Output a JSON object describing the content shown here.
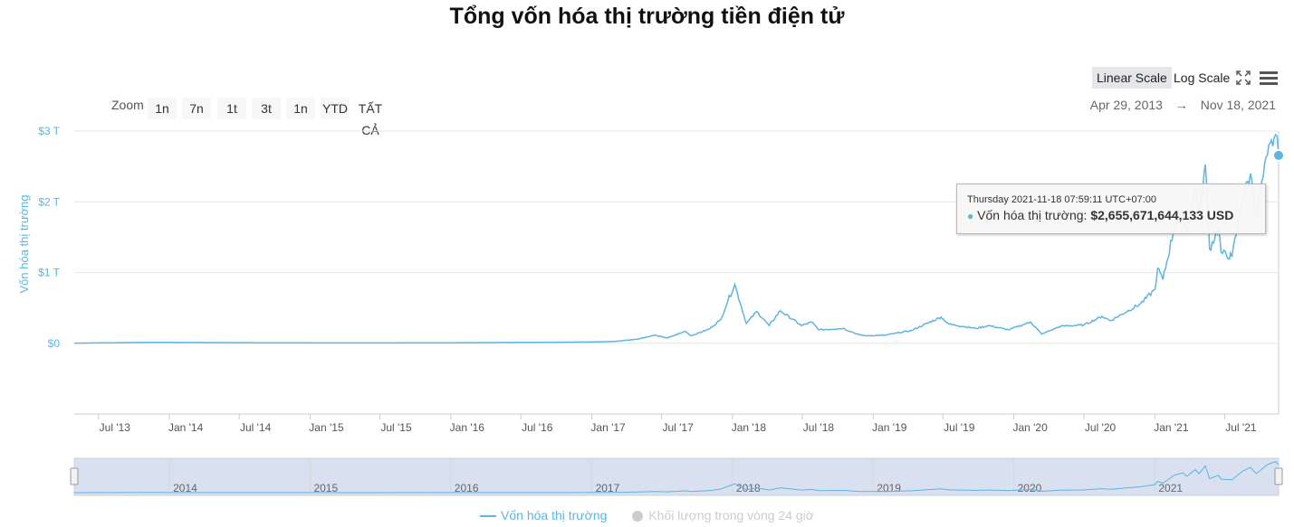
{
  "title": "Tổng vốn hóa thị trường tiền điện tử",
  "toolbar": {
    "linear_scale": "Linear Scale",
    "log_scale": "Log Scale",
    "zoom_label": "Zoom",
    "zoom_buttons": [
      "1n",
      "7n",
      "1t",
      "3t",
      "1n",
      "YTD",
      "TẤT CẢ"
    ],
    "range_from": "Apr 29, 2013",
    "range_arrow": "→",
    "range_to": "Nov 18, 2021"
  },
  "tooltip": {
    "time": "Thursday 2021-11-18 07:59:11 UTC+07:00",
    "series_label": "Vốn hóa thị trường:",
    "value": "$2,655,671,644,133 USD"
  },
  "legend": {
    "series1": "Vốn hóa thị trường",
    "series2": "Khối lượng trong vòng 24 giờ"
  },
  "colors": {
    "line": "#5fb4e2",
    "grid": "#e6e6e6",
    "navigator_fill": "#ccd6eb",
    "legend_disabled": "#cccccc"
  },
  "icons": [
    "fullscreen-icon",
    "menu-icon"
  ],
  "chart_data": {
    "type": "line",
    "title": "Tổng vốn hóa thị trường tiền điện tử",
    "ylabel": "Vốn hóa thị trường",
    "yunit": "USD",
    "ylim": [
      -1000000000000,
      3000000000000
    ],
    "y_ticks": [
      0,
      1000000000000,
      2000000000000,
      3000000000000
    ],
    "y_tick_labels": [
      "$0",
      "$1 T",
      "$2 T",
      "$3 T"
    ],
    "x_range": [
      "2013-04-29",
      "2021-11-18"
    ],
    "x_tick_labels": [
      "Jul '13",
      "Jan '14",
      "Jul '14",
      "Jan '15",
      "Jul '15",
      "Jan '16",
      "Jul '16",
      "Jan '17",
      "Jul '17",
      "Jan '18",
      "Jul '18",
      "Jan '19",
      "Jul '19",
      "Jan '20",
      "Jul '20",
      "Jan '21",
      "Jul '21"
    ],
    "x_tick_dates": [
      "2013-07-01",
      "2014-01-01",
      "2014-07-01",
      "2015-01-01",
      "2015-07-01",
      "2016-01-01",
      "2016-07-01",
      "2017-01-01",
      "2017-07-01",
      "2018-01-01",
      "2018-07-01",
      "2019-01-01",
      "2019-07-01",
      "2020-01-01",
      "2020-07-01",
      "2021-01-01",
      "2021-07-01"
    ],
    "navigator_years": [
      "2014",
      "2015",
      "2016",
      "2017",
      "2018",
      "2019",
      "2020",
      "2021"
    ],
    "grid": true,
    "legend_position": "bottom",
    "series": [
      {
        "name": "Vốn hóa thị trường",
        "points": [
          [
            "2013-04-29",
            1500000000.0
          ],
          [
            "2013-11-30",
            14000000000.0
          ],
          [
            "2014-01-01",
            12000000000.0
          ],
          [
            "2014-06-01",
            9000000000.0
          ],
          [
            "2015-01-01",
            5000000000.0
          ],
          [
            "2015-06-01",
            4000000000.0
          ],
          [
            "2016-01-01",
            7000000000.0
          ],
          [
            "2016-06-15",
            12000000000.0
          ],
          [
            "2017-01-01",
            18000000000.0
          ],
          [
            "2017-03-01",
            25000000000.0
          ],
          [
            "2017-05-01",
            60000000000.0
          ],
          [
            "2017-06-12",
            115000000000.0
          ],
          [
            "2017-07-16",
            75000000000.0
          ],
          [
            "2017-09-01",
            170000000000.0
          ],
          [
            "2017-09-15",
            105000000000.0
          ],
          [
            "2017-11-01",
            200000000000.0
          ],
          [
            "2017-12-01",
            330000000000.0
          ],
          [
            "2017-12-20",
            600000000000.0
          ],
          [
            "2018-01-07",
            830000000000.0
          ],
          [
            "2018-02-06",
            280000000000.0
          ],
          [
            "2018-03-05",
            450000000000.0
          ],
          [
            "2018-04-06",
            250000000000.0
          ],
          [
            "2018-05-05",
            460000000000.0
          ],
          [
            "2018-06-29",
            250000000000.0
          ],
          [
            "2018-07-25",
            300000000000.0
          ],
          [
            "2018-08-14",
            190000000000.0
          ],
          [
            "2018-10-15",
            210000000000.0
          ],
          [
            "2018-11-25",
            120000000000.0
          ],
          [
            "2018-12-15",
            105000000000.0
          ],
          [
            "2019-02-01",
            115000000000.0
          ],
          [
            "2019-04-10",
            180000000000.0
          ],
          [
            "2019-06-26",
            370000000000.0
          ],
          [
            "2019-07-17",
            270000000000.0
          ],
          [
            "2019-09-24",
            210000000000.0
          ],
          [
            "2019-10-28",
            250000000000.0
          ],
          [
            "2019-12-18",
            190000000000.0
          ],
          [
            "2020-02-14",
            300000000000.0
          ],
          [
            "2020-03-13",
            130000000000.0
          ],
          [
            "2020-05-01",
            240000000000.0
          ],
          [
            "2020-07-01",
            260000000000.0
          ],
          [
            "2020-08-17",
            380000000000.0
          ],
          [
            "2020-09-08",
            320000000000.0
          ],
          [
            "2020-11-25",
            560000000000.0
          ],
          [
            "2021-01-01",
            760000000000.0
          ],
          [
            "2021-01-08",
            1060000000000.0
          ],
          [
            "2021-01-22",
            900000000000.0
          ],
          [
            "2021-02-21",
            1660000000000.0
          ],
          [
            "2021-03-14",
            1870000000000.0
          ],
          [
            "2021-03-25",
            1560000000000.0
          ],
          [
            "2021-04-16",
            2180000000000.0
          ],
          [
            "2021-04-25",
            1790000000000.0
          ],
          [
            "2021-05-12",
            2530000000000.0
          ],
          [
            "2021-05-23",
            1330000000000.0
          ],
          [
            "2021-06-15",
            1640000000000.0
          ],
          [
            "2021-06-22",
            1280000000000.0
          ],
          [
            "2021-07-20",
            1220000000000.0
          ],
          [
            "2021-08-15",
            2000000000000.0
          ],
          [
            "2021-09-06",
            2400000000000.0
          ],
          [
            "2021-09-21",
            1800000000000.0
          ],
          [
            "2021-10-20",
            2660000000000.0
          ],
          [
            "2021-11-10",
            2950000000000.0
          ],
          [
            "2021-11-18",
            2656000000000.0
          ]
        ]
      }
    ]
  }
}
